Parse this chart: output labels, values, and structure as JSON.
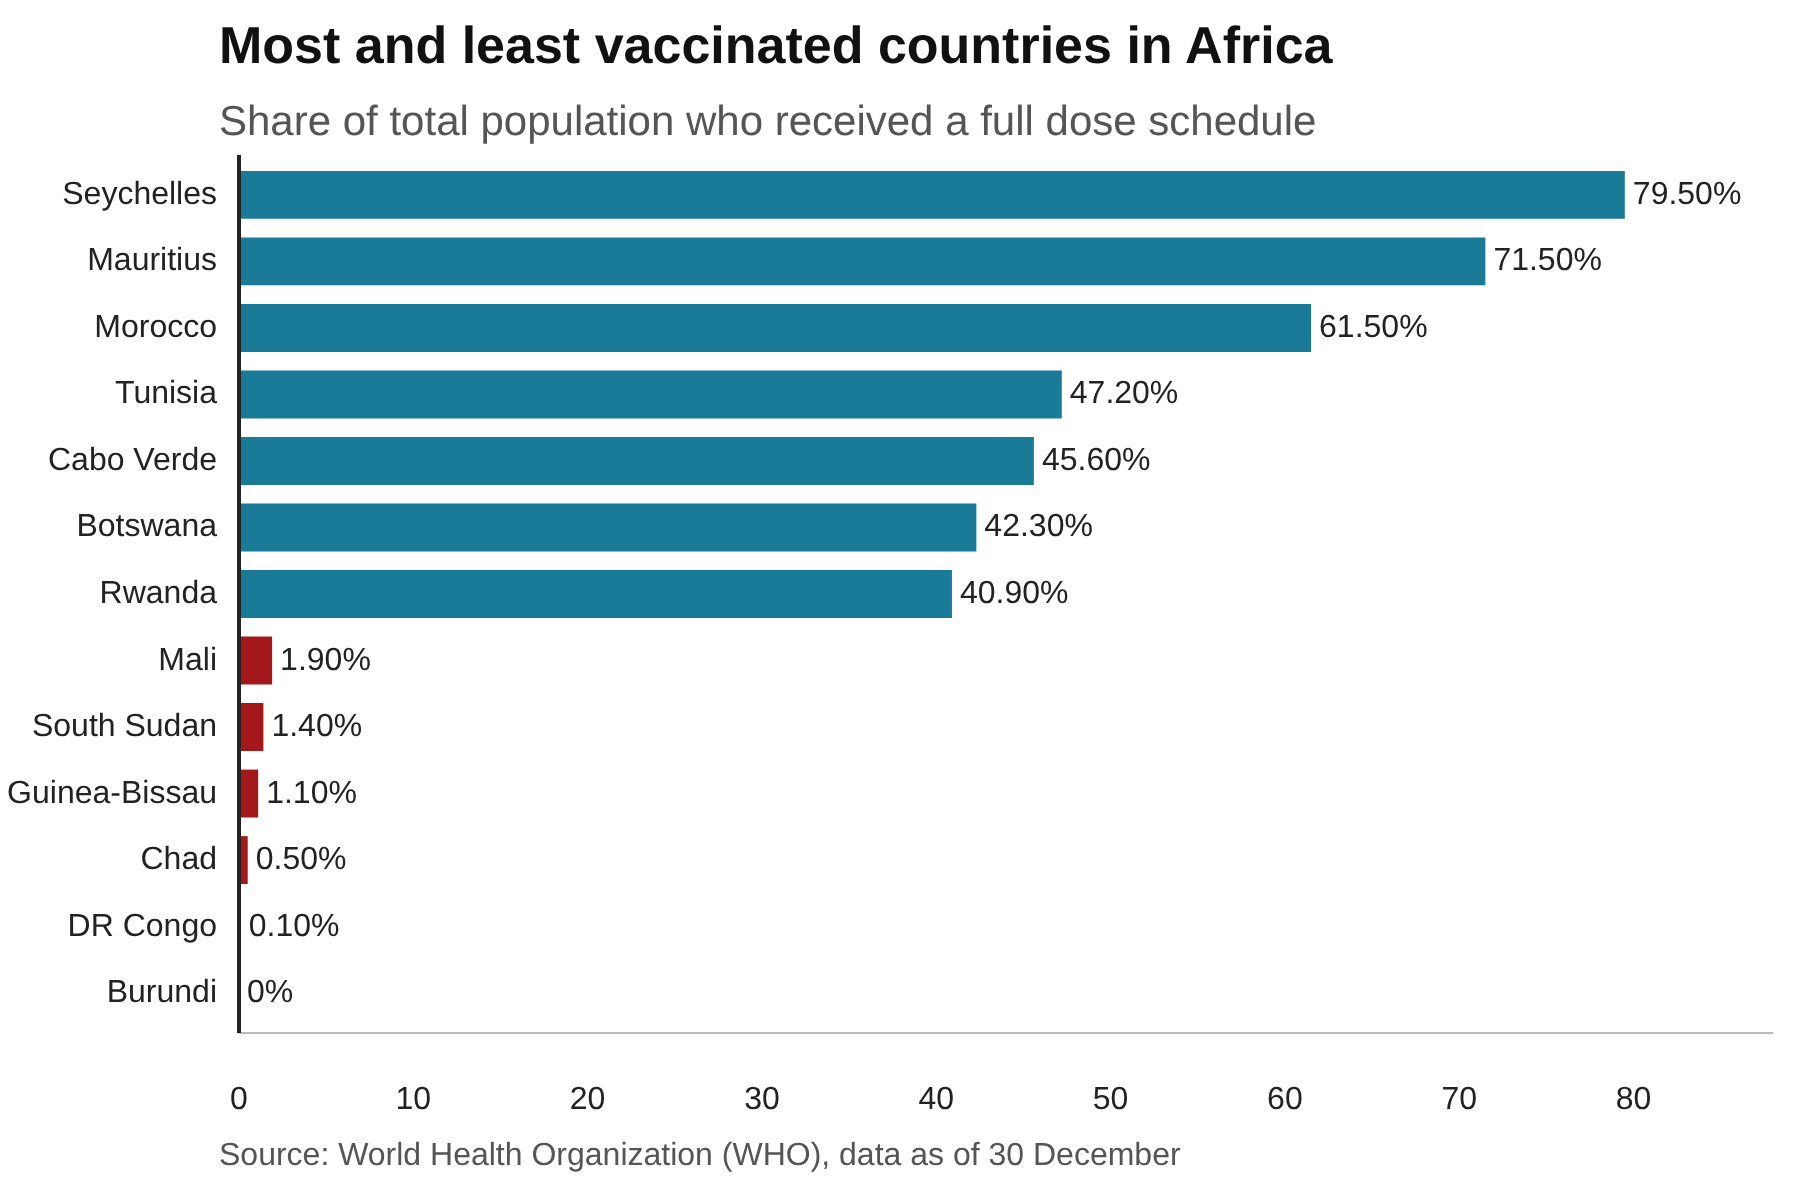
{
  "chart_data": {
    "type": "bar",
    "orientation": "horizontal",
    "title": "Most and least vaccinated countries in Africa",
    "subtitle": "Share of total population who received a full dose schedule",
    "categories": [
      "Seychelles",
      "Mauritius",
      "Morocco",
      "Tunisia",
      "Cabo Verde",
      "Botswana",
      "Rwanda",
      "Mali",
      "South Sudan",
      "Guinea-Bissau",
      "Chad",
      "DR Congo",
      "Burundi"
    ],
    "values": [
      79.5,
      71.5,
      61.5,
      47.2,
      45.6,
      42.3,
      40.9,
      1.9,
      1.4,
      1.1,
      0.5,
      0.1,
      0
    ],
    "value_labels": [
      "79.50%",
      "71.50%",
      "61.50%",
      "47.20%",
      "45.60%",
      "42.30%",
      "40.90%",
      "1.90%",
      "1.40%",
      "1.10%",
      "0.50%",
      "0.10%",
      "0%"
    ],
    "colors": [
      "#1a7b98",
      "#1a7b98",
      "#1a7b98",
      "#1a7b98",
      "#1a7b98",
      "#1a7b98",
      "#1a7b98",
      "#a3181b",
      "#a3181b",
      "#a3181b",
      "#a3181b",
      "#a3181b",
      "#a3181b"
    ],
    "xlim": [
      0,
      88
    ],
    "xticks": [
      0,
      10,
      20,
      30,
      40,
      50,
      60,
      70,
      80
    ],
    "annotations": [
      "Source: World Health Organization (WHO), data as of 30 December"
    ]
  }
}
